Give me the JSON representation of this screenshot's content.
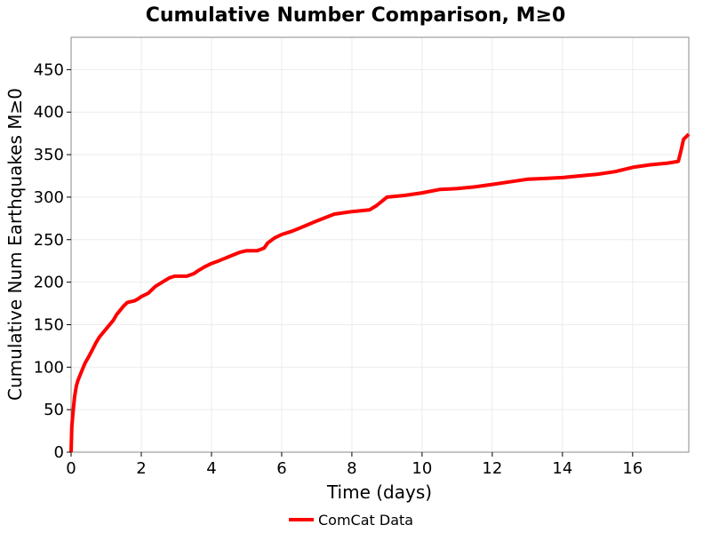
{
  "chart_data": {
    "type": "line",
    "title": "Cumulative Number Comparison, M≥0",
    "xlabel": "Time (days)",
    "ylabel": "Cumulative Num Earthquakes M≥0",
    "xlim": [
      0,
      17.6
    ],
    "ylim": [
      0,
      488
    ],
    "xticks": [
      0,
      2,
      4,
      6,
      8,
      10,
      12,
      14,
      16
    ],
    "yticks": [
      0,
      50,
      100,
      150,
      200,
      250,
      300,
      350,
      400,
      450
    ],
    "grid": true,
    "legend_position": "bottom-center",
    "series": [
      {
        "name": "ComCat Data",
        "color": "#ff0000",
        "x": [
          0,
          0.02,
          0.05,
          0.1,
          0.15,
          0.2,
          0.3,
          0.4,
          0.5,
          0.6,
          0.7,
          0.8,
          0.9,
          1.0,
          1.1,
          1.2,
          1.3,
          1.4,
          1.5,
          1.6,
          1.7,
          1.8,
          1.9,
          2.0,
          2.2,
          2.4,
          2.6,
          2.8,
          2.95,
          3.1,
          3.3,
          3.5,
          3.6,
          3.8,
          4.0,
          4.2,
          4.5,
          4.8,
          5.0,
          5.3,
          5.5,
          5.6,
          5.8,
          6.0,
          6.3,
          6.6,
          7.0,
          7.5,
          8.0,
          8.5,
          8.7,
          9.0,
          9.5,
          10.0,
          10.5,
          11.0,
          11.5,
          12.0,
          12.5,
          13.0,
          13.5,
          14.0,
          14.5,
          15.0,
          15.5,
          16.0,
          16.5,
          17.0,
          17.3,
          17.38,
          17.45,
          17.55,
          17.6
        ],
        "y": [
          0,
          30,
          45,
          65,
          78,
          85,
          95,
          105,
          112,
          120,
          128,
          135,
          140,
          145,
          150,
          155,
          162,
          167,
          172,
          176,
          177,
          178,
          180,
          183,
          187,
          195,
          200,
          205,
          207,
          207,
          207,
          210,
          213,
          218,
          222,
          225,
          230,
          235,
          237,
          237,
          240,
          246,
          252,
          256,
          260,
          265,
          272,
          280,
          283,
          285,
          290,
          300,
          302,
          305,
          309,
          310,
          312,
          315,
          318,
          321,
          322,
          323,
          325,
          327,
          330,
          335,
          338,
          340,
          342,
          355,
          368,
          372,
          374
        ]
      }
    ]
  }
}
